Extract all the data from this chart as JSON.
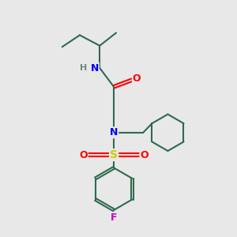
{
  "background_color": "#e8e8e8",
  "atom_colors": {
    "N": "#0000ff",
    "O": "#ff0000",
    "S": "#cccc00",
    "F": "#cc00cc",
    "C": "#2f6a4f",
    "H": "#6a8a7a"
  },
  "bond_color": "#2f6a4f",
  "figsize": [
    3.0,
    3.0
  ],
  "dpi": 100
}
